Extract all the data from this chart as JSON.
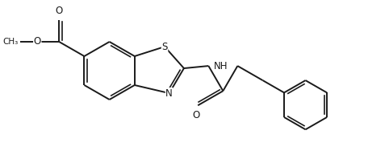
{
  "bg_color": "#ffffff",
  "line_color": "#1a1a1a",
  "line_width": 1.4,
  "font_size": 8.5,
  "figsize": [
    4.82,
    1.98
  ],
  "dpi": 100,
  "xlim": [
    0,
    9.6
  ],
  "ylim": [
    0,
    3.96
  ]
}
